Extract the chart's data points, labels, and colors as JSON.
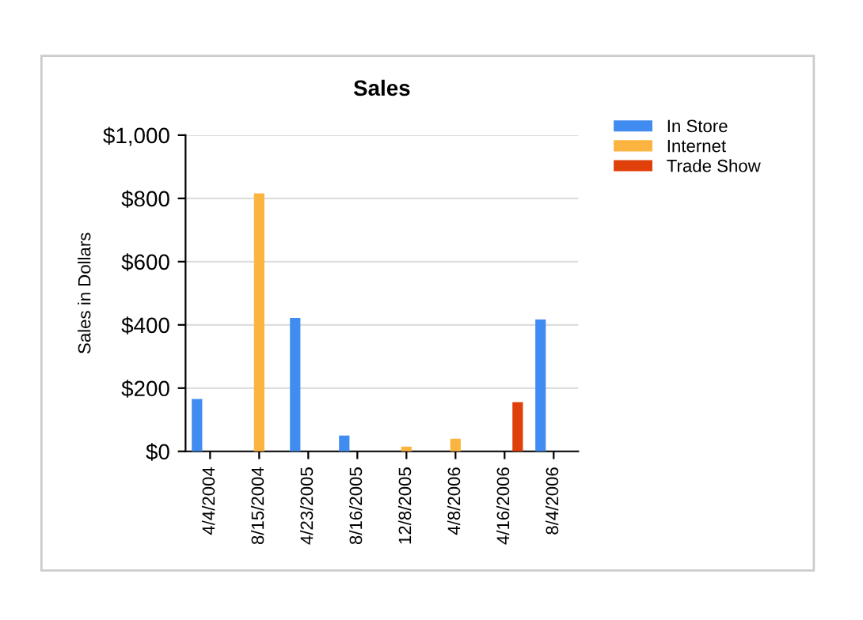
{
  "chart_data": {
    "type": "bar",
    "title": "Sales",
    "ylabel": "Sales in Dollars",
    "categories": [
      "4/4/2004",
      "8/15/2004",
      "4/23/2005",
      "8/16/2005",
      "12/8/2005",
      "4/8/2006",
      "4/16/2006",
      "8/4/2006"
    ],
    "series": [
      {
        "name": "In Store",
        "color": "#418cf0",
        "values": [
          166,
          null,
          422,
          50,
          null,
          null,
          null,
          417
        ]
      },
      {
        "name": "Internet",
        "color": "#fcb441",
        "values": [
          null,
          816,
          null,
          null,
          15,
          40,
          null,
          null
        ]
      },
      {
        "name": "Trade Show",
        "color": "#e0400a",
        "values": [
          null,
          null,
          null,
          null,
          null,
          null,
          156,
          null
        ]
      }
    ],
    "ylim": [
      0,
      1000
    ],
    "yticks": [
      {
        "value": 0,
        "label": "$0"
      },
      {
        "value": 200,
        "label": "$200"
      },
      {
        "value": 400,
        "label": "$400"
      },
      {
        "value": 600,
        "label": "$600"
      },
      {
        "value": 800,
        "label": "$800"
      },
      {
        "value": 1000,
        "label": "$1,000"
      }
    ],
    "grid": "y",
    "legend": "top right"
  }
}
